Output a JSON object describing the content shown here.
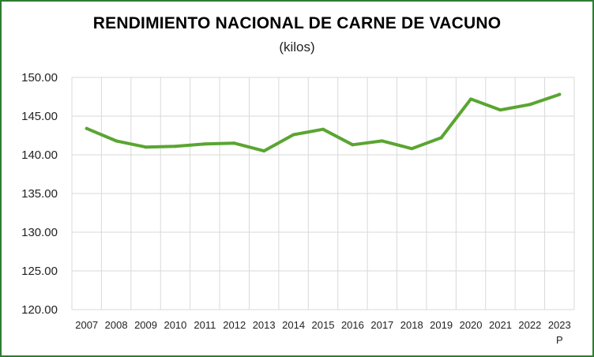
{
  "chart_data": {
    "type": "line",
    "title": "RENDIMIENTO NACIONAL DE CARNE DE VACUNO",
    "subtitle": "(kilos)",
    "xlabel": "",
    "ylabel": "",
    "categories": [
      "2007",
      "2008",
      "2009",
      "2010",
      "2011",
      "2012",
      "2013",
      "2014",
      "2015",
      "2016",
      "2017",
      "2018",
      "2019",
      "2020",
      "2021",
      "2022",
      "2023"
    ],
    "category_notes": [
      "",
      "",
      "",
      "",
      "",
      "",
      "",
      "",
      "",
      "",
      "",
      "",
      "",
      "",
      "",
      "",
      "P"
    ],
    "series": [
      {
        "values": [
          143.4,
          141.8,
          141.0,
          141.1,
          141.4,
          141.5,
          140.5,
          142.6,
          143.3,
          141.3,
          141.8,
          140.8,
          142.2,
          147.2,
          145.8,
          146.5,
          147.8
        ]
      }
    ],
    "ylim": [
      120,
      150
    ],
    "yticks": [
      "150.00",
      "145.00",
      "140.00",
      "135.00",
      "130.00",
      "125.00",
      "120.00"
    ],
    "ytick_values": [
      150,
      145,
      140,
      135,
      130,
      125,
      120
    ],
    "grid": true,
    "legend": "none",
    "line_color": "#5aa531",
    "grid_color": "#d9d9d9",
    "border_color": "#2e7d32"
  }
}
